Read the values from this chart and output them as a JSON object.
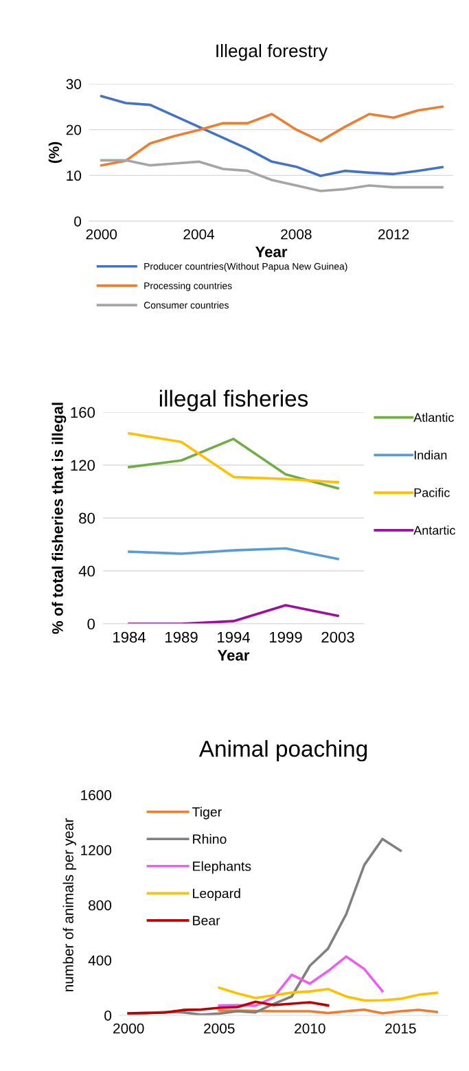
{
  "chart_data": [
    {
      "type": "line",
      "title": "Illegal forestry",
      "xlabel": "Year",
      "ylabel": "(%)",
      "x": [
        2000,
        2001,
        2002,
        2003,
        2004,
        2005,
        2006,
        2007,
        2008,
        2009,
        2010,
        2011,
        2012,
        2013,
        2014
      ],
      "xlim": [
        1999.5,
        2014.45
      ],
      "xticks": [
        2000,
        2004,
        2008,
        2012
      ],
      "ylim": [
        0,
        30
      ],
      "yticks": [
        0,
        10,
        20,
        30
      ],
      "grid": "y",
      "legend": "bottom",
      "series": [
        {
          "name": "Producer countries(Without Papua New Guinea)",
          "color": "#4472c4",
          "values": [
            27.3,
            25.8,
            25.4,
            23,
            20.6,
            18.2,
            15.8,
            13,
            11.9,
            9.9,
            11,
            10.6,
            10.3,
            11,
            11.8
          ]
        },
        {
          "name": "Processing countries",
          "color": "#ed7d31",
          "values": [
            12.2,
            13.2,
            17,
            18.6,
            19.9,
            21.4,
            21.4,
            23.4,
            20,
            17.5,
            20.6,
            23.4,
            22.6,
            24.2,
            25
          ]
        },
        {
          "name": "Consumer countries",
          "color": "#a5a5a5",
          "values": [
            13.3,
            13.3,
            12.2,
            12.6,
            13,
            11.4,
            11,
            9,
            7.8,
            6.6,
            7,
            7.8,
            7.4,
            7.4,
            7.4
          ]
        }
      ]
    },
    {
      "type": "line",
      "title": "illegal fisheries",
      "xlabel": "Year",
      "ylabel": "% of total fisheries that is illegal",
      "categories": [
        "1984",
        "1989",
        "1994",
        "1999",
        "2003"
      ],
      "ylim": [
        0,
        160
      ],
      "yticks": [
        0,
        40,
        80,
        120,
        160
      ],
      "grid": "y",
      "legend": "right",
      "series": [
        {
          "name": "Atlantic",
          "color": "#70ad47",
          "values": [
            118.5,
            123.5,
            139.8,
            113,
            102.5
          ]
        },
        {
          "name": "Indian",
          "color": "#5b9bd5",
          "values": [
            54.5,
            53,
            55.5,
            57,
            49
          ]
        },
        {
          "name": "Pacific",
          "color": "#ffc000",
          "values": [
            144,
            137.5,
            111,
            109.5,
            107
          ]
        },
        {
          "name": "Antartic",
          "color": "#9e0fa0",
          "values": [
            0,
            0,
            2,
            14,
            6
          ]
        }
      ]
    },
    {
      "type": "line",
      "title": "Animal poaching",
      "ylabel": "number of animals per year",
      "xlim": [
        1999.5,
        2017.6
      ],
      "xticks": [
        2000,
        2005,
        2010,
        2015
      ],
      "ylim": [
        0,
        1600
      ],
      "yticks": [
        0,
        400,
        800,
        1200,
        1600
      ],
      "grid": false,
      "legend": "top left",
      "series": [
        {
          "name": "Tiger",
          "color": "#ed7d31",
          "x": [
            2005,
            2006,
            2007,
            2008,
            2009,
            2010,
            2011,
            2012,
            2013,
            2014,
            2015,
            2016,
            2017
          ],
          "values": [
            35,
            35,
            32,
            30,
            30,
            30,
            17,
            30,
            41,
            15,
            30,
            40,
            25
          ]
        },
        {
          "name": "Rhino",
          "color": "#808080",
          "x": [
            2000,
            2001,
            2002,
            2003,
            2004,
            2005,
            2006,
            2007,
            2008,
            2009,
            2010,
            2011,
            2012,
            2013,
            2014,
            2015
          ],
          "values": [
            13,
            15,
            25,
            22,
            5,
            13,
            30,
            22,
            83,
            137,
            360,
            484,
            733,
            1091,
            1280,
            1195
          ]
        },
        {
          "name": "Elephants",
          "color": "#ee5eee",
          "x": [
            2005,
            2006,
            2007,
            2008,
            2009,
            2010,
            2011,
            2012,
            2013,
            2014
          ],
          "values": [
            72,
            75,
            70,
            130,
            295,
            230,
            321,
            427,
            336,
            176
          ]
        },
        {
          "name": "Leopard",
          "color": "#ffc000",
          "x": [
            2005,
            2006,
            2007,
            2008,
            2009,
            2010,
            2011,
            2012,
            2013,
            2014,
            2015,
            2016,
            2017
          ],
          "values": [
            200,
            160,
            126,
            145,
            165,
            174,
            191,
            137,
            108,
            110,
            120,
            150,
            163
          ]
        },
        {
          "name": "Bear",
          "color": "#c00000",
          "x": [
            2000,
            2001,
            2002,
            2003,
            2004,
            2005,
            2006,
            2007,
            2008,
            2009,
            2010,
            2011
          ],
          "values": [
            15,
            18,
            20,
            39,
            42,
            55,
            60,
            98,
            75,
            85,
            95,
            72
          ]
        }
      ]
    }
  ]
}
